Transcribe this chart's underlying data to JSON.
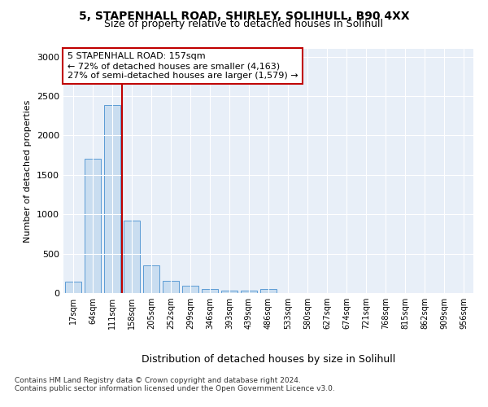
{
  "title_line1": "5, STAPENHALL ROAD, SHIRLEY, SOLIHULL, B90 4XX",
  "title_line2": "Size of property relative to detached houses in Solihull",
  "xlabel": "Distribution of detached houses by size in Solihull",
  "ylabel": "Number of detached properties",
  "categories": [
    "17sqm",
    "64sqm",
    "111sqm",
    "158sqm",
    "205sqm",
    "252sqm",
    "299sqm",
    "346sqm",
    "393sqm",
    "439sqm",
    "486sqm",
    "533sqm",
    "580sqm",
    "627sqm",
    "674sqm",
    "721sqm",
    "768sqm",
    "815sqm",
    "862sqm",
    "909sqm",
    "956sqm"
  ],
  "values": [
    140,
    1700,
    2390,
    920,
    350,
    160,
    90,
    55,
    35,
    30,
    55,
    0,
    0,
    0,
    0,
    0,
    0,
    0,
    0,
    0,
    0
  ],
  "bar_color": "#c9ddf0",
  "bar_edge_color": "#5b9bd5",
  "vline_color": "#c00000",
  "annotation_text": "5 STAPENHALL ROAD: 157sqm\n← 72% of detached houses are smaller (4,163)\n27% of semi-detached houses are larger (1,579) →",
  "annotation_box_color": "#ffffff",
  "annotation_box_edge": "#c00000",
  "ylim": [
    0,
    3100
  ],
  "yticks": [
    0,
    500,
    1000,
    1500,
    2000,
    2500,
    3000
  ],
  "footer_line1": "Contains HM Land Registry data © Crown copyright and database right 2024.",
  "footer_line2": "Contains public sector information licensed under the Open Government Licence v3.0.",
  "plot_bg_color": "#e8eff8",
  "fig_bg_color": "#ffffff"
}
